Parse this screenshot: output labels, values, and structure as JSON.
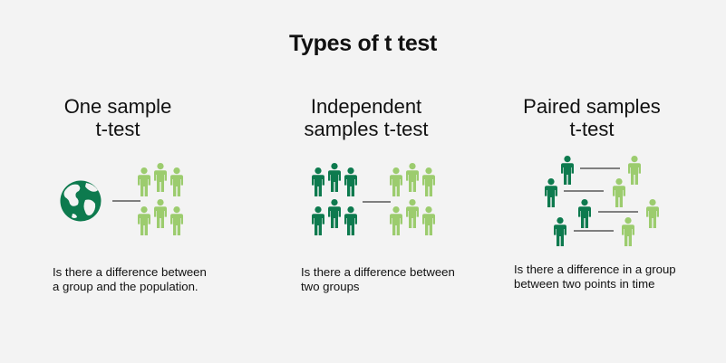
{
  "title": "Types of t test",
  "colors": {
    "dark_green": "#0d7a4e",
    "light_green": "#9ccc6e",
    "background": "#f3f3f3"
  },
  "columns": [
    {
      "title_line1": "One sample",
      "title_line2": "t-test",
      "description_line1": "Is there a difference between",
      "description_line2": "a group and the population.",
      "icons": [
        "globe-icon",
        "person-icon"
      ]
    },
    {
      "title_line1": "Independent",
      "title_line2": "samples t-test",
      "description_line1": "Is there a difference between",
      "description_line2": "two groups",
      "icons": [
        "person-icon"
      ]
    },
    {
      "title_line1": "Paired samples",
      "title_line2": "t-test",
      "description_line1": "Is there a difference in a group",
      "description_line2": "between two points in time",
      "icons": [
        "person-icon"
      ]
    }
  ]
}
